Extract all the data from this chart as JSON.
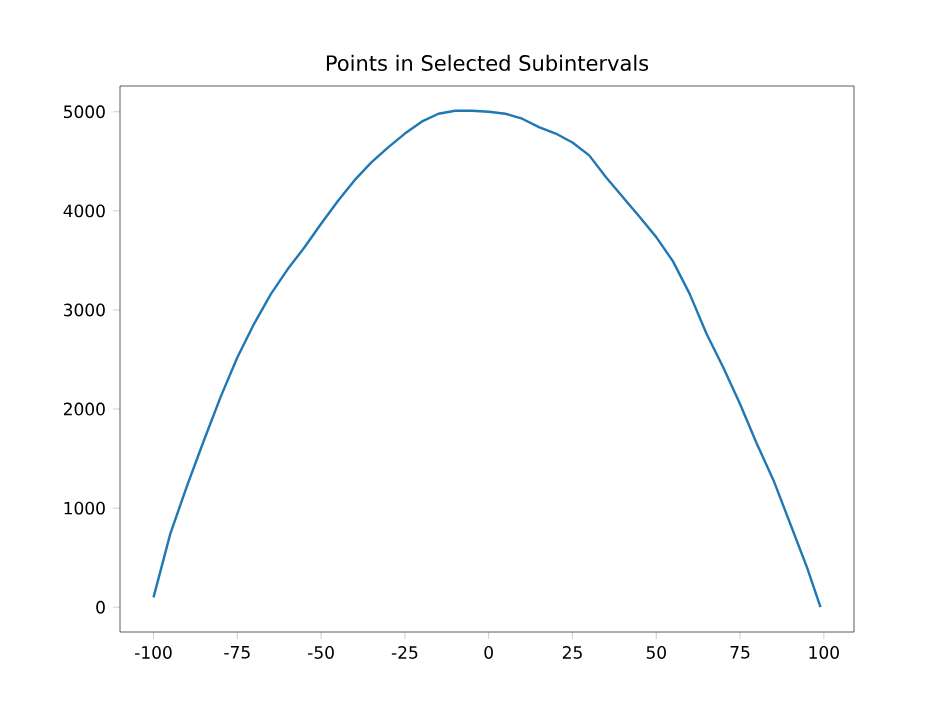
{
  "chart_data": {
    "type": "line",
    "title": "Points in Selected Subintervals",
    "x": [
      -100,
      -95,
      -90,
      -85,
      -80,
      -75,
      -70,
      -65,
      -60,
      -55,
      -50,
      -45,
      -40,
      -35,
      -30,
      -25,
      -20,
      -15,
      -10,
      -5,
      0,
      5,
      10,
      15,
      20,
      25,
      30,
      35,
      40,
      45,
      50,
      55,
      60,
      65,
      70,
      75,
      80,
      85,
      90,
      95,
      99
    ],
    "values": [
      100,
      740,
      1225,
      1680,
      2120,
      2520,
      2860,
      3160,
      3410,
      3630,
      3870,
      4100,
      4310,
      4490,
      4640,
      4780,
      4900,
      4980,
      5010,
      5010,
      5000,
      4980,
      4930,
      4845,
      4780,
      4690,
      4560,
      4340,
      4140,
      3940,
      3735,
      3490,
      3160,
      2760,
      2420,
      2050,
      1650,
      1280,
      840,
      400,
      0
    ],
    "color": "#1f77b4",
    "xlim": [
      -110,
      109
    ],
    "ylim": [
      -250,
      5260
    ],
    "xticks": [
      -100,
      -75,
      -50,
      -25,
      0,
      25,
      50,
      75,
      100
    ],
    "yticks": [
      0,
      1000,
      2000,
      3000,
      4000,
      5000
    ]
  }
}
